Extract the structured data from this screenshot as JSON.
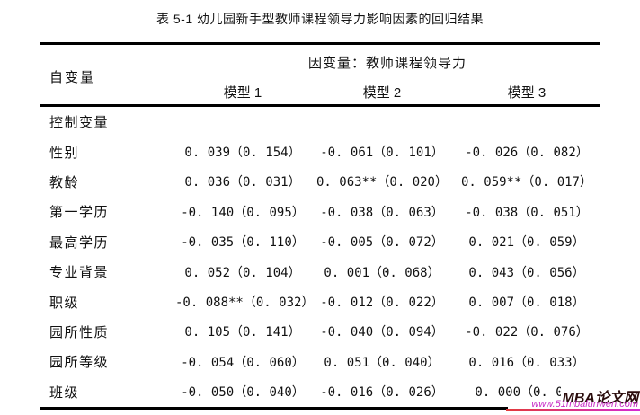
{
  "title": "表 5-1 幼儿园新手型教师课程领导力影响因素的回归结果",
  "table": {
    "row_header": "自变量",
    "dependent_header": "因变量：教师课程领导力",
    "model_headers": [
      "模型 1",
      "模型 2",
      "模型 3"
    ],
    "rows": [
      {
        "label": "控制变量",
        "m1": "",
        "m2": "",
        "m3": ""
      },
      {
        "label": "性别",
        "m1": "0. 039（0. 154）",
        "m2": "-0. 061（0. 101）",
        "m3": "-0. 026（0. 082）"
      },
      {
        "label": "教龄",
        "m1": "0. 036（0. 031）",
        "m2": "0. 063**（0. 020）",
        "m3": "0. 059**（0. 017）"
      },
      {
        "label": "第一学历",
        "m1": "-0. 140（0. 095）",
        "m2": "-0. 038（0. 063）",
        "m3": "-0. 038（0. 051）"
      },
      {
        "label": "最高学历",
        "m1": "-0. 035（0. 110）",
        "m2": "-0. 005（0. 072）",
        "m3": "0. 021（0. 059）"
      },
      {
        "label": "专业背景",
        "m1": "0. 052（0. 104）",
        "m2": "0. 001（0. 068）",
        "m3": "0. 043（0. 056）"
      },
      {
        "label": "职级",
        "m1": "-0. 088**（0. 032）",
        "m2": "-0. 012（0. 022）",
        "m3": "0. 007（0. 018）"
      },
      {
        "label": "园所性质",
        "m1": "0. 105（0. 141）",
        "m2": "-0. 040（0. 094）",
        "m3": "-0. 022（0. 076）"
      },
      {
        "label": "园所等级",
        "m1": "-0. 054（0. 060）",
        "m2": "0. 051（0. 040）",
        "m3": "0. 016（0. 033）"
      },
      {
        "label": "班级",
        "m1": "-0. 050（0. 040）",
        "m2": "-0. 016（0. 026）",
        "m3": "0. 000（0. 021"
      }
    ]
  },
  "watermark": {
    "name": "MBA论文网",
    "url": "www.51mbalunwen.com",
    "name_color": "#2b0d0d",
    "url_color": "#c72bc7",
    "underline_colors": [
      "#e23a3a",
      "#d42bd4"
    ]
  }
}
